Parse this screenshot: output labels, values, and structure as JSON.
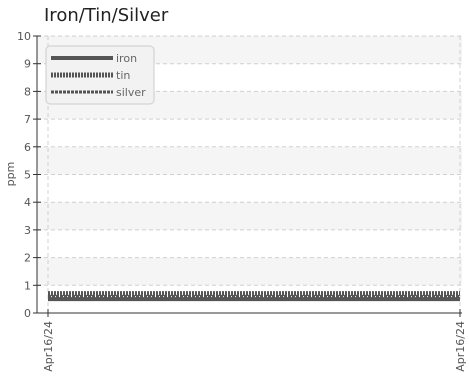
{
  "chart_data": {
    "type": "line",
    "title": "Iron/Tin/Silver",
    "ylabel": "ppm",
    "xlabel": "",
    "ylim": [
      0,
      10
    ],
    "y_ticks": [
      0,
      1,
      2,
      3,
      4,
      5,
      6,
      7,
      8,
      9,
      10
    ],
    "x": [
      "Apr16/24",
      "Apr16/24"
    ],
    "x_tick_labels": [
      "Apr16/24",
      "Apr16/24"
    ],
    "grid": true,
    "legend": "top-left",
    "series": [
      {
        "name": "iron",
        "values": [
          0.5,
          0.5
        ],
        "color": "#555555",
        "style": "solid"
      },
      {
        "name": "tin",
        "values": [
          0.7,
          0.7
        ],
        "color": "#555555",
        "style": "dotted"
      },
      {
        "name": "silver",
        "values": [
          0.6,
          0.6
        ],
        "color": "#555555",
        "style": "dashed"
      }
    ]
  }
}
